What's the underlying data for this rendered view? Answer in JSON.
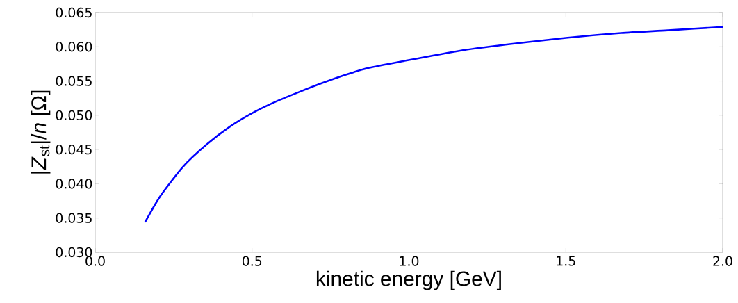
{
  "chart_data": {
    "type": "line",
    "xlabel": "kinetic energy [GeV]",
    "ylabel": "|*Z*$_{st}$|/*n* [Ω]",
    "x": [
      0.159,
      0.206,
      0.28,
      0.354,
      0.428,
      0.5,
      0.576,
      0.65,
      0.723,
      0.797,
      0.871,
      0.982,
      1.16,
      1.307,
      1.5,
      1.676,
      1.825,
      2.0
    ],
    "series": [
      {
        "color": "#0000ff",
        "values": [
          0.0344,
          0.0381,
          0.0425,
          0.0457,
          0.0483,
          0.0503,
          0.052,
          0.0534,
          0.0547,
          0.0559,
          0.0569,
          0.0579,
          0.0594,
          0.0603,
          0.0613,
          0.062,
          0.0624,
          0.0629
        ]
      }
    ],
    "xlim": [
      0,
      2
    ],
    "ylim": [
      0.03,
      0.065
    ],
    "xticks": [
      {
        "value": 0,
        "label": "0.0"
      },
      0.5,
      {
        "value": 1,
        "label": "1.0"
      },
      1.5,
      {
        "value": 2,
        "label": "2.0"
      }
    ],
    "yticks": [
      {
        "value": 0.03,
        "label": "0.030"
      },
      {
        "value": 0.035,
        "label": "0.035"
      },
      {
        "value": 0.04,
        "label": "0.040"
      },
      {
        "value": 0.045,
        "label": "0.045"
      },
      {
        "value": 0.05,
        "label": "0.050"
      },
      {
        "value": 0.055,
        "label": "0.055"
      },
      {
        "value": 0.06,
        "label": "0.060"
      },
      {
        "value": 0.065,
        "label": "0.065"
      }
    ]
  }
}
